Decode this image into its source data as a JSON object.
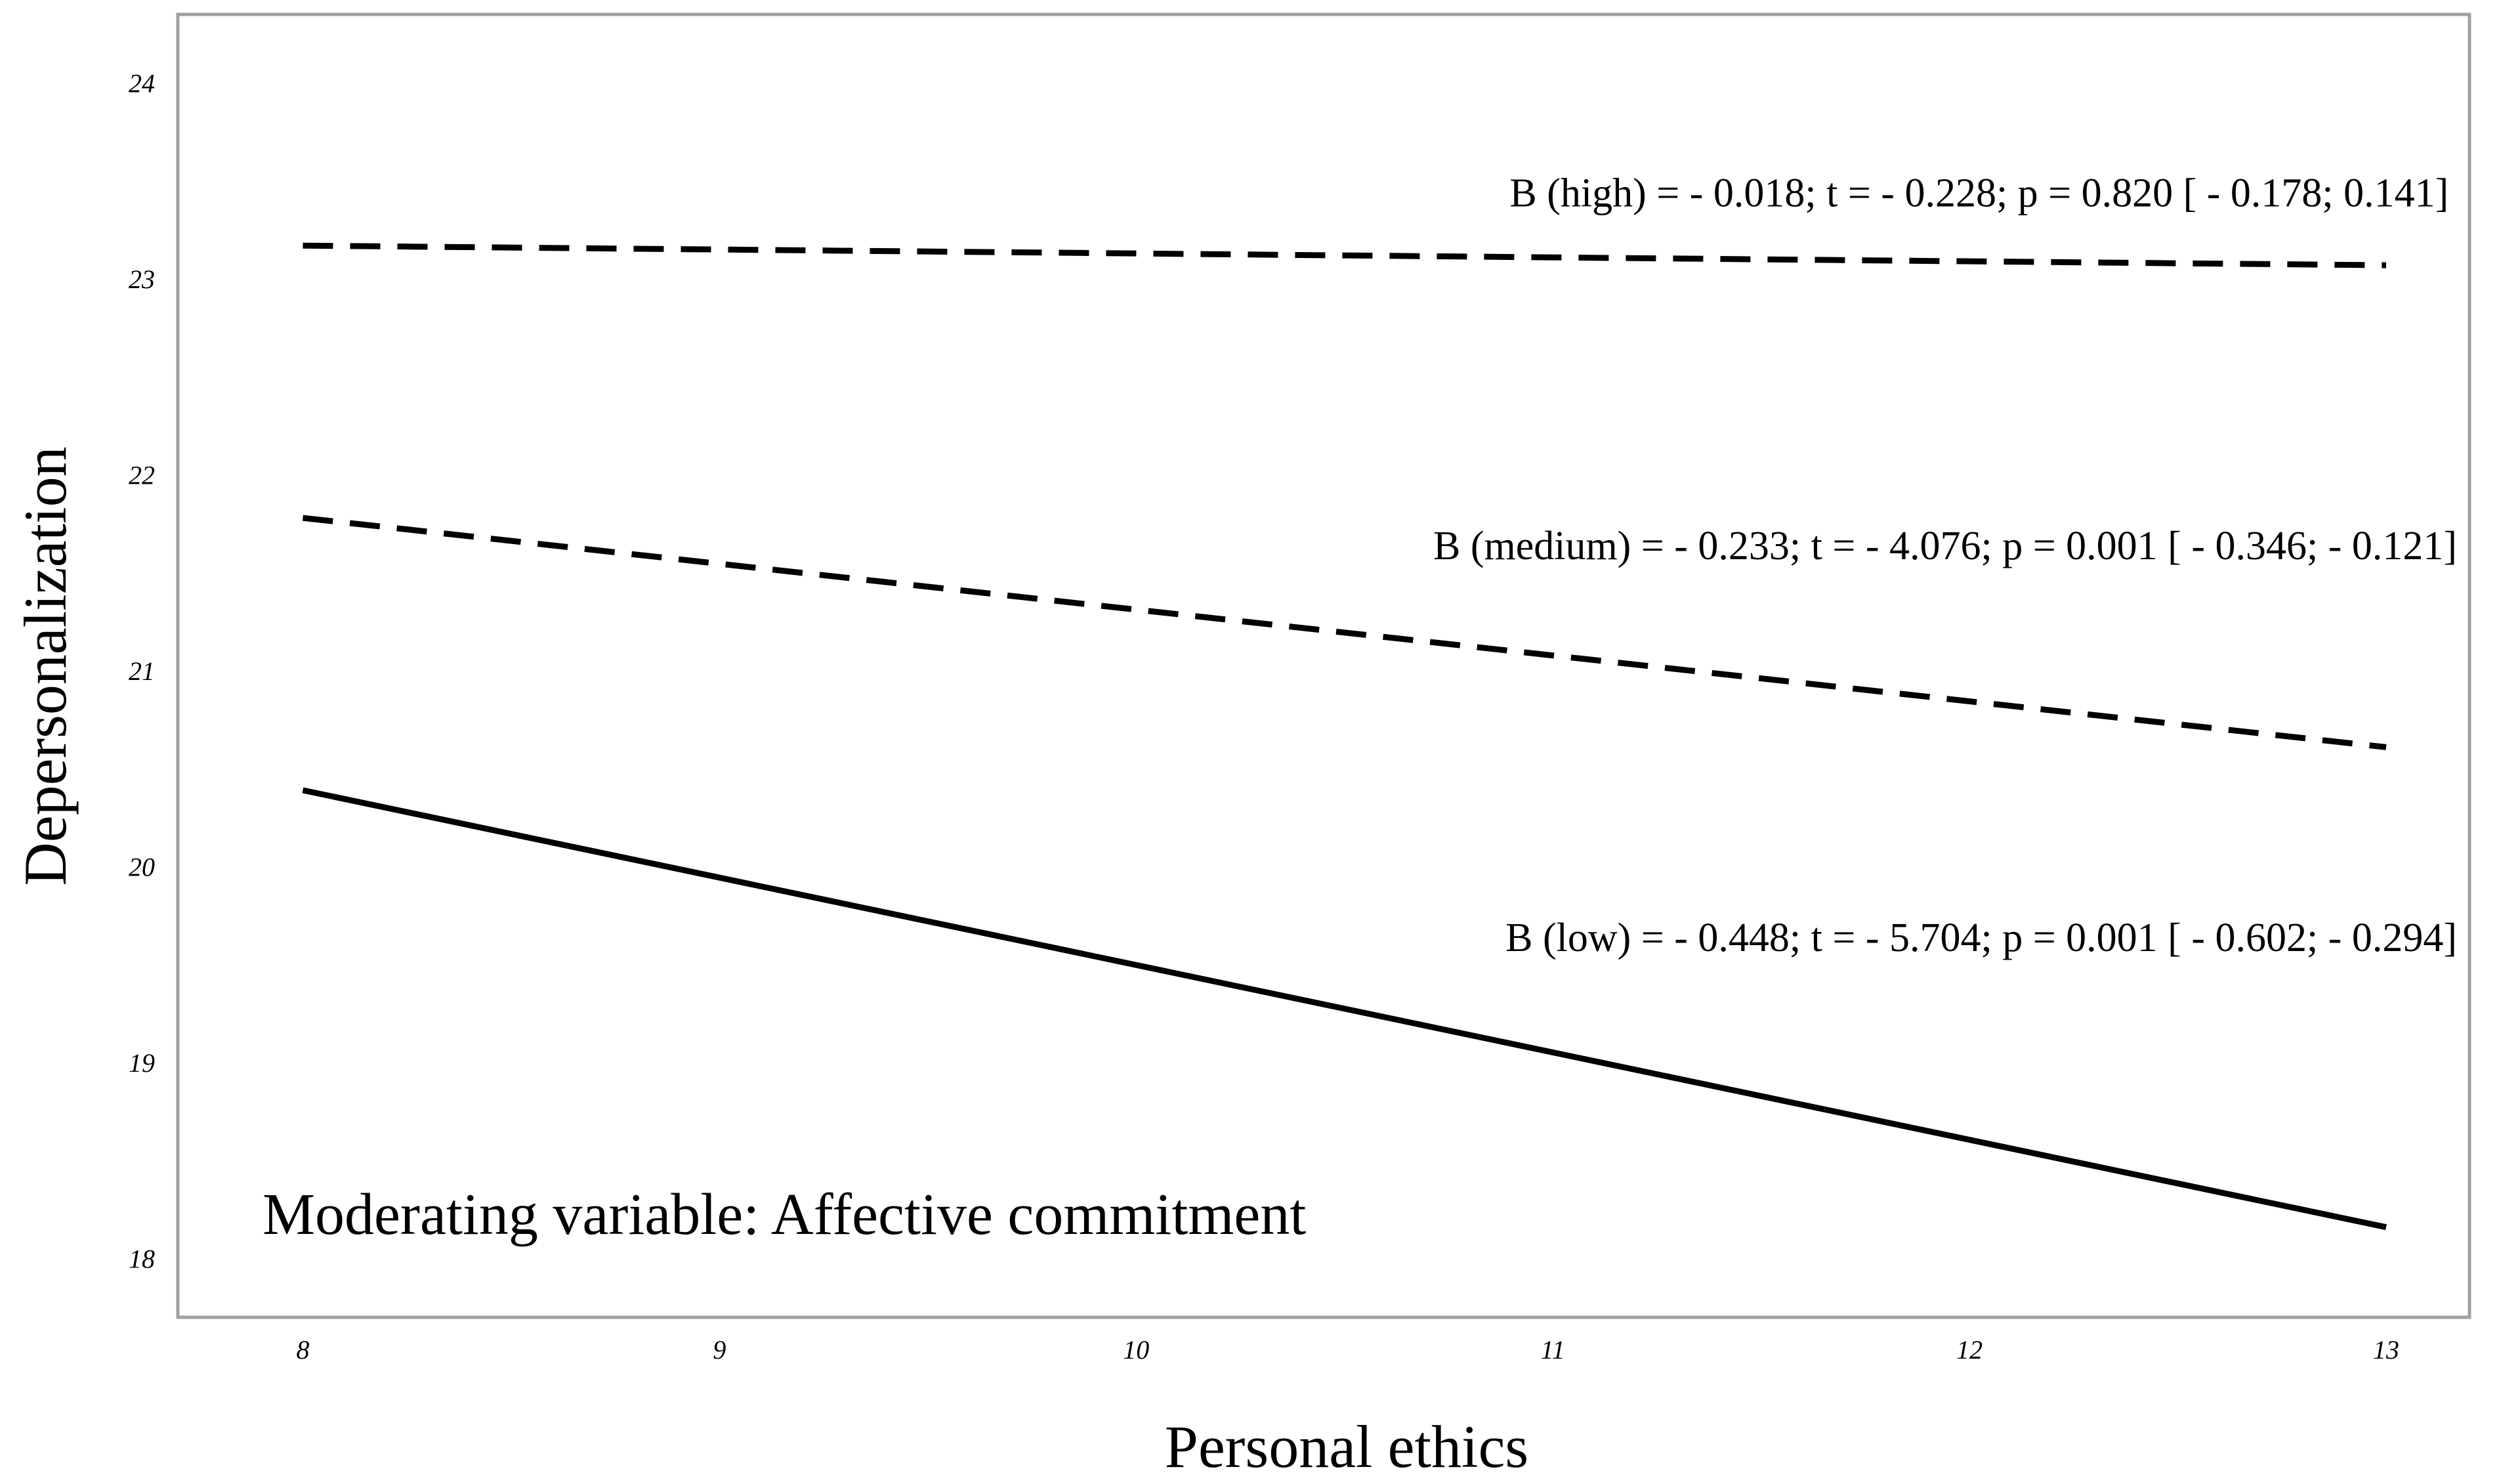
{
  "chart_data": {
    "type": "line",
    "title": "",
    "xlabel": "Personal ethics",
    "ylabel": "Depersonalization",
    "xlim": [
      7.7,
      13.2
    ],
    "ylim": [
      17.7,
      24.35
    ],
    "x_ticks": [
      8,
      9,
      10,
      11,
      12,
      13
    ],
    "y_ticks": [
      18,
      19,
      20,
      21,
      22,
      23,
      24
    ],
    "grid": false,
    "legend": "none",
    "moderator_note": "Moderating variable: Affective commitment",
    "series": [
      {
        "name": "high",
        "style": "dashed",
        "x": [
          8,
          13
        ],
        "y": [
          23.17,
          23.07
        ],
        "annotation": "B (high) = - 0.018; t = - 0.228; p = 0.820 [ - 0.178; 0.141]",
        "annotation_at": [
          13.15,
          23.37
        ]
      },
      {
        "name": "medium",
        "style": "dashed",
        "x": [
          8,
          13
        ],
        "y": [
          21.78,
          20.61
        ],
        "annotation": "B (medium) = - 0.233; t = - 4.076; p = 0.001 [ - 0.346; - 0.121]",
        "annotation_at": [
          13.17,
          21.57
        ]
      },
      {
        "name": "low",
        "style": "solid",
        "x": [
          8,
          13
        ],
        "y": [
          20.39,
          18.16
        ],
        "annotation": "B (low) = - 0.448; t = - 5.704; p = 0.001 [ - 0.602; - 0.294]",
        "annotation_at": [
          13.17,
          19.57
        ]
      }
    ]
  }
}
